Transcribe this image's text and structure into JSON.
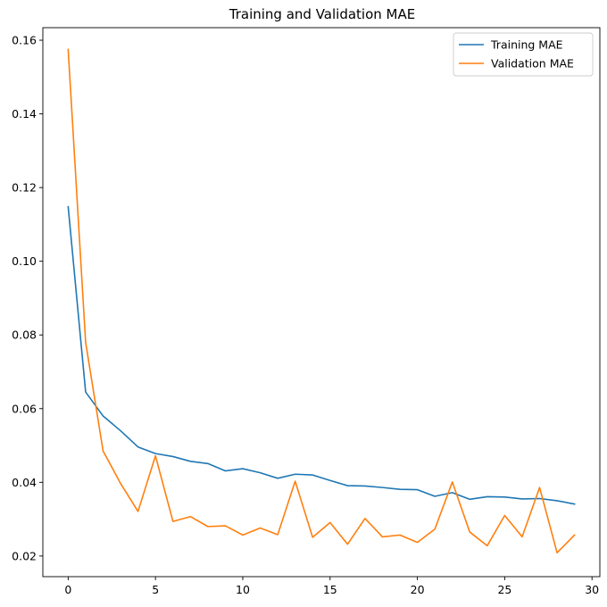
{
  "chart_data": {
    "type": "line",
    "title": "Training and Validation MAE",
    "xlabel": "",
    "ylabel": "",
    "xlim": [
      -1.45,
      30.45
    ],
    "ylim": [
      0.0144,
      0.1634
    ],
    "x_ticks": [
      0,
      5,
      10,
      15,
      20,
      25,
      30
    ],
    "y_ticks": [
      0.02,
      0.04,
      0.06,
      0.08,
      0.1,
      0.12,
      0.14,
      0.16
    ],
    "grid": false,
    "legend_position": "top-right",
    "x": [
      0,
      1,
      2,
      3,
      4,
      5,
      6,
      7,
      8,
      9,
      10,
      11,
      12,
      13,
      14,
      15,
      16,
      17,
      18,
      19,
      20,
      21,
      22,
      23,
      24,
      25,
      26,
      27,
      28,
      29
    ],
    "series": [
      {
        "name": "Training MAE",
        "color": "#1f77b4",
        "values": [
          0.1148,
          0.0645,
          0.058,
          0.054,
          0.0496,
          0.0478,
          0.047,
          0.0457,
          0.0451,
          0.0431,
          0.0437,
          0.0426,
          0.0411,
          0.0422,
          0.042,
          0.0405,
          0.0391,
          0.039,
          0.0386,
          0.0381,
          0.038,
          0.0362,
          0.0372,
          0.0354,
          0.0361,
          0.036,
          0.0355,
          0.0356,
          0.035,
          0.0341
        ]
      },
      {
        "name": "Validation MAE",
        "color": "#ff7f0e",
        "values": [
          0.1575,
          0.078,
          0.0485,
          0.0397,
          0.0321,
          0.0472,
          0.0294,
          0.0307,
          0.028,
          0.0282,
          0.0257,
          0.0276,
          0.0258,
          0.0403,
          0.0251,
          0.0291,
          0.0232,
          0.0302,
          0.0252,
          0.0257,
          0.0237,
          0.0273,
          0.0401,
          0.0265,
          0.0228,
          0.031,
          0.0252,
          0.0386,
          0.0209,
          0.0257
        ]
      }
    ]
  }
}
